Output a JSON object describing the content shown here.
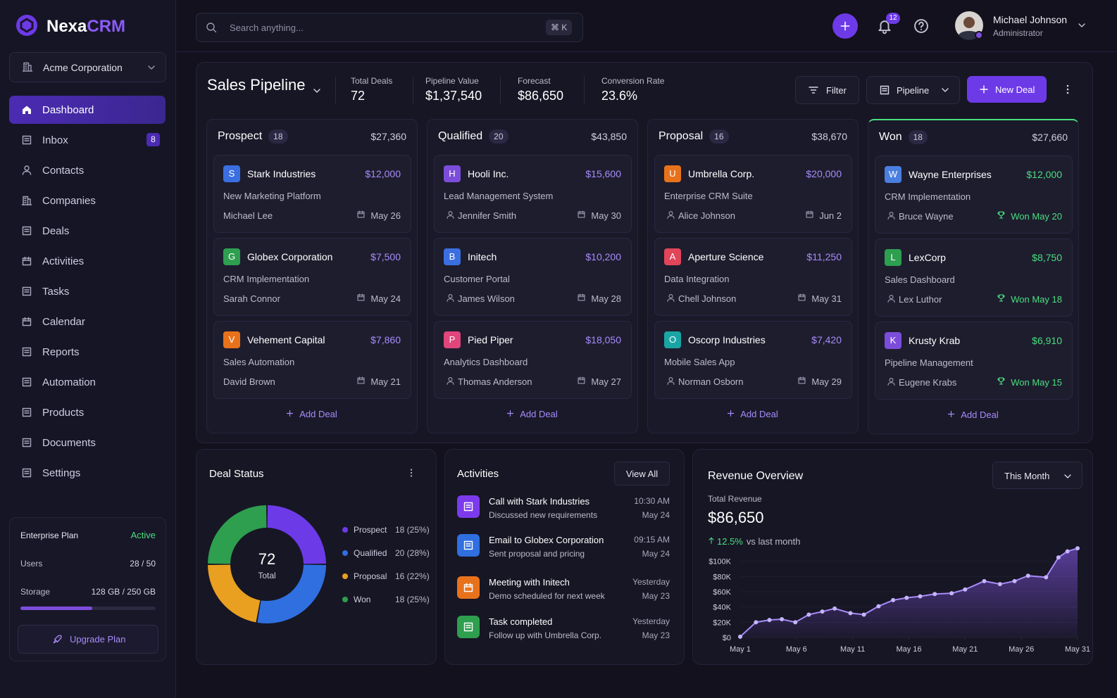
{
  "sidebar": {
    "brand": {
      "name": "Nexa",
      "accent": "CRM"
    },
    "org": "Acme Corporation",
    "nav": [
      {
        "label": "Dashboard",
        "active": true
      },
      {
        "label": "Inbox",
        "badge": "8"
      },
      {
        "label": "Contacts"
      },
      {
        "label": "Companies"
      },
      {
        "label": "Deals"
      },
      {
        "label": "Activities"
      },
      {
        "label": "Tasks"
      },
      {
        "label": "Calendar"
      },
      {
        "label": "Reports"
      },
      {
        "label": "Automation"
      },
      {
        "label": "Products"
      },
      {
        "label": "Documents"
      },
      {
        "label": "Settings"
      }
    ],
    "plan": {
      "title": "Enterprise Plan",
      "status": "Active",
      "users_label": "Users",
      "users": "28 / 50",
      "storage_label": "Storage",
      "storage": "128 GB / 250 GB",
      "button": "Upgrade Plan"
    }
  },
  "topbar": {
    "search": "Search anything...",
    "shortcut": "⌘ K",
    "notifications": "12",
    "user": {
      "name": "Michael Johnson",
      "role": "Administrator"
    }
  },
  "pipeline": {
    "title": "Sales Pipeline",
    "stats": [
      {
        "label": "Total Deals",
        "value": "72"
      },
      {
        "label": "Pipeline Value",
        "value": "$1,37,540"
      },
      {
        "label": "Forecast",
        "value": "$86,650"
      },
      {
        "label": "Conversion Rate",
        "value": "23.6%"
      }
    ],
    "buttons": {
      "filter": "Filter",
      "view": "Pipeline",
      "new": "New Deal"
    },
    "columns": [
      {
        "name": "Prospect",
        "count": "18",
        "total": "$27,360",
        "add": "Add Deal",
        "accent": "#a78bfa",
        "cards": [
          {
            "initial": "S",
            "color": "#3b6fe0",
            "company": "Stark Industries",
            "amount": "$12,000",
            "project": "New Marketing Platform",
            "owner": "Michael Lee",
            "date": "May 26"
          },
          {
            "initial": "G",
            "color": "#2e9e4f",
            "company": "Globex Corporation",
            "amount": "$7,500",
            "project": "CRM Implementation",
            "owner": "Sarah Connor",
            "date": "May 24"
          },
          {
            "initial": "V",
            "color": "#e8721c",
            "company": "Vehement Capital",
            "amount": "$7,860",
            "project": "Sales Automation",
            "owner": "David Brown",
            "date": "May 21"
          }
        ]
      },
      {
        "name": "Qualified",
        "count": "20",
        "total": "$43,850",
        "add": "Add Deal",
        "accent": "#a78bfa",
        "cards": [
          {
            "initial": "H",
            "color": "#7c4ddb",
            "company": "Hooli Inc.",
            "amount": "$15,600",
            "project": "Lead Management System",
            "owner": "Jennifer Smith",
            "date": "May 30"
          },
          {
            "initial": "B",
            "color": "#3b6fe0",
            "company": "Initech",
            "amount": "$10,200",
            "project": "Customer Portal",
            "owner": "James Wilson",
            "date": "May 28"
          },
          {
            "initial": "P",
            "color": "#e0457b",
            "company": "Pied Piper",
            "amount": "$18,050",
            "project": "Analytics Dashboard",
            "owner": "Thomas Anderson",
            "date": "May 27"
          }
        ]
      },
      {
        "name": "Proposal",
        "count": "16",
        "total": "$38,670",
        "add": "Add Deal",
        "accent": "#a78bfa",
        "cards": [
          {
            "initial": "U",
            "color": "#e8721c",
            "company": "Umbrella Corp.",
            "amount": "$20,000",
            "project": "Enterprise CRM Suite",
            "owner": "Alice Johnson",
            "date": "Jun 2"
          },
          {
            "initial": "A",
            "color": "#e0455a",
            "company": "Aperture Science",
            "amount": "$11,250",
            "project": "Data Integration",
            "owner": "Chell Johnson",
            "date": "May 31"
          },
          {
            "initial": "O",
            "color": "#1aa5a5",
            "company": "Oscorp Industries",
            "amount": "$7,420",
            "project": "Mobile Sales App",
            "owner": "Norman Osborn",
            "date": "May 29"
          }
        ]
      },
      {
        "name": "Won",
        "count": "18",
        "total": "$27,660",
        "add": "Add Deal",
        "accent": "#4ade80",
        "won": true,
        "cards": [
          {
            "initial": "W",
            "color": "#4a7fe0",
            "company": "Wayne Enterprises",
            "amount": "$12,000",
            "project": "CRM Implementation",
            "owner": "Bruce Wayne",
            "date": "Won May 20"
          },
          {
            "initial": "L",
            "color": "#2e9e4f",
            "company": "LexCorp",
            "amount": "$8,750",
            "project": "Sales Dashboard",
            "owner": "Lex Luthor",
            "date": "Won May 18"
          },
          {
            "initial": "K",
            "color": "#7c4ddb",
            "company": "Krusty Krab",
            "amount": "$6,910",
            "project": "Pipeline Management",
            "owner": "Eugene Krabs",
            "date": "Won May 15"
          }
        ]
      }
    ]
  },
  "activities": {
    "title": "Activities",
    "view_all": "View All",
    "items": [
      {
        "title": "Call with Stark Industries",
        "detail": "Discussed new requirements",
        "time": "10:30 AM",
        "date": "May 24",
        "color": "#7c3aed"
      },
      {
        "title": "Email to Globex Corporation",
        "detail": "Sent proposal and pricing",
        "time": "09:15 AM",
        "date": "May 24",
        "color": "#2f6fe0"
      },
      {
        "title": "Meeting with Initech",
        "detail": "Demo scheduled for next week",
        "time": "Yesterday",
        "date": "May 23",
        "color": "#e8721c"
      },
      {
        "title": "Task completed",
        "detail": "Follow up with Umbrella Corp.",
        "time": "Yesterday",
        "date": "May 23",
        "color": "#2e9e4f"
      }
    ]
  },
  "revenue": {
    "summary_label": "Total Revenue",
    "total": "$86,650",
    "change": "12.5%",
    "change_label": "vs last month",
    "period": "This Month"
  },
  "chart_data": [
    {
      "type": "donut",
      "title": "Deal Status",
      "center_value": "72",
      "center_label": "Total",
      "categories": [
        "Prospect",
        "Qualified",
        "Proposal",
        "Won"
      ],
      "values": [
        18,
        20,
        16,
        18
      ],
      "value_labels": [
        "18 (25%)",
        "20 (28%)",
        "16 (22%)",
        "18 (25%)"
      ],
      "colors": [
        "#6d3ae8",
        "#2f6fe0",
        "#e9a020",
        "#2e9e4f"
      ]
    },
    {
      "type": "area",
      "title": "Revenue Overview",
      "color": "#8b5cf6",
      "x": [
        1,
        2.4,
        3.6,
        4.7,
        5.9,
        7.1,
        8.3,
        9.4,
        10.8,
        12,
        13.3,
        14.6,
        15.8,
        17,
        18.3,
        19.8,
        21,
        22.7,
        24.1,
        25.4,
        26.6,
        28.2,
        29.3,
        30.1,
        31
      ],
      "values": [
        1000,
        20000,
        23000,
        24000,
        20000,
        30000,
        34000,
        38000,
        32000,
        30000,
        41000,
        49000,
        52000,
        54000,
        57000,
        58000,
        63000,
        74000,
        70000,
        74000,
        81000,
        79000,
        105000,
        113000,
        117000
      ],
      "xlim": [
        1,
        31
      ],
      "xticks": [
        {
          "value": 1,
          "label": "May 1"
        },
        {
          "value": 6,
          "label": "May 6"
        },
        {
          "value": 11,
          "label": "May 11"
        },
        {
          "value": 16,
          "label": "May 16"
        },
        {
          "value": 21,
          "label": "May 21"
        },
        {
          "value": 26,
          "label": "May 26"
        },
        {
          "value": 31,
          "label": "May 31"
        }
      ],
      "ylim": [
        0,
        120000
      ],
      "yticks": [
        {
          "value": 0,
          "label": "$0"
        },
        {
          "value": 20000,
          "label": "$20K"
        },
        {
          "value": 40000,
          "label": "$40K"
        },
        {
          "value": 60000,
          "label": "$60K"
        },
        {
          "value": 80000,
          "label": "$80K"
        },
        {
          "value": 100000,
          "label": "$100K"
        }
      ]
    }
  ]
}
